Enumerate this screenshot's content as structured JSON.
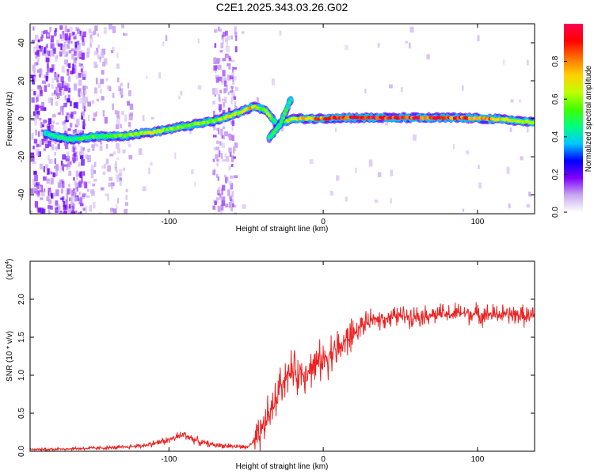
{
  "title": "C2E1.2025.343.03.26.G02",
  "chart_data": [
    {
      "type": "heatmap",
      "name": "spectrogram",
      "xlabel": "Height of straight line (km)",
      "ylabel": "Frequency (Hz)",
      "xlim": [
        -190,
        137
      ],
      "ylim": [
        -50,
        50
      ],
      "xticks": [
        -100,
        0,
        100
      ],
      "xtick_labels": [
        "-100",
        "0",
        "100"
      ],
      "yticks": [
        -40,
        -20,
        0,
        20,
        40
      ],
      "ytick_labels": [
        "-40",
        "-20",
        "0",
        "20",
        "40"
      ],
      "colorbar": {
        "label": "Normalized spectral amplitude",
        "range": [
          0,
          1
        ],
        "ticks": [
          0,
          0.2,
          0.4,
          0.6,
          0.8
        ],
        "tick_labels": [
          "0.0",
          "0.2",
          "0.4",
          "0.6",
          "0.8"
        ],
        "colors": [
          "#ffffff",
          "#c8a8f0",
          "#8000ff",
          "#0000ff",
          "#00c8ff",
          "#00ff80",
          "#40ff00",
          "#c0ff00",
          "#ffd000",
          "#ff7000",
          "#ff0000",
          "#ff0050"
        ]
      },
      "ridge": [
        {
          "x": -180,
          "f": -7.5,
          "a": 0.45
        },
        {
          "x": -165,
          "f": -11,
          "a": 0.5
        },
        {
          "x": -150,
          "f": -9.5,
          "a": 0.55
        },
        {
          "x": -130,
          "f": -9,
          "a": 0.6
        },
        {
          "x": -110,
          "f": -7,
          "a": 0.65
        },
        {
          "x": -90,
          "f": -4,
          "a": 0.6
        },
        {
          "x": -70,
          "f": -1,
          "a": 0.65
        },
        {
          "x": -55,
          "f": 3,
          "a": 0.7
        },
        {
          "x": -45,
          "f": 6.5,
          "a": 0.75
        },
        {
          "x": -38,
          "f": 5,
          "a": 0.6
        },
        {
          "x": -30,
          "f": -3,
          "a": 0.55
        },
        {
          "x": -20,
          "f": 0,
          "a": 0.7
        },
        {
          "x": -5,
          "f": 0,
          "a": 0.8
        },
        {
          "x": 10,
          "f": 0.5,
          "a": 0.95
        },
        {
          "x": 50,
          "f": 0.5,
          "a": 0.95
        },
        {
          "x": 90,
          "f": 0.5,
          "a": 0.9
        },
        {
          "x": 120,
          "f": -0.5,
          "a": 0.75
        },
        {
          "x": 137,
          "f": -2,
          "a": 0.65
        }
      ],
      "branch": [
        {
          "x": -35,
          "f": -10,
          "a": 0.5
        },
        {
          "x": -28,
          "f": -3,
          "a": 0.55
        },
        {
          "x": -21,
          "f": 10,
          "a": 0.5
        }
      ]
    },
    {
      "type": "line",
      "name": "snr",
      "xlabel": "Height of straight line (km)",
      "ylabel": "SNR (10 * v/v)",
      "scale_label": "(x10",
      "scale_exponent": "4",
      "scale_suffix": ")",
      "xlim": [
        -190,
        137
      ],
      "ylim": [
        0,
        2.5
      ],
      "xticks": [
        -100,
        0,
        100
      ],
      "xtick_labels": [
        "-100",
        "0",
        "100"
      ],
      "yticks": [
        0,
        0.5,
        1.0,
        1.5,
        2.0
      ],
      "ytick_labels": [
        "0.0",
        "0.5",
        "1.0",
        "1.5",
        "2.0"
      ],
      "color": "#ee2222",
      "series": [
        {
          "name": "SNR",
          "x": [
            -190,
            -170,
            -150,
            -130,
            -115,
            -100,
            -90,
            -80,
            -70,
            -60,
            -50,
            -42,
            -36,
            -32,
            -28,
            -24,
            -20,
            -16,
            -12,
            -8,
            -4,
            0,
            5,
            10,
            15,
            20,
            25,
            30,
            35,
            40,
            50,
            60,
            70,
            80,
            90,
            100,
            110,
            120,
            130,
            137
          ],
          "y": [
            0.02,
            0.03,
            0.04,
            0.05,
            0.08,
            0.15,
            0.22,
            0.12,
            0.08,
            0.07,
            0.05,
            0.15,
            0.45,
            0.6,
            0.85,
            1.0,
            1.05,
            1.0,
            1.05,
            1.1,
            1.15,
            1.2,
            1.3,
            1.35,
            1.45,
            1.55,
            1.65,
            1.7,
            1.75,
            1.75,
            1.78,
            1.78,
            1.8,
            1.8,
            1.82,
            1.8,
            1.8,
            1.8,
            1.78,
            1.78
          ]
        }
      ]
    }
  ]
}
